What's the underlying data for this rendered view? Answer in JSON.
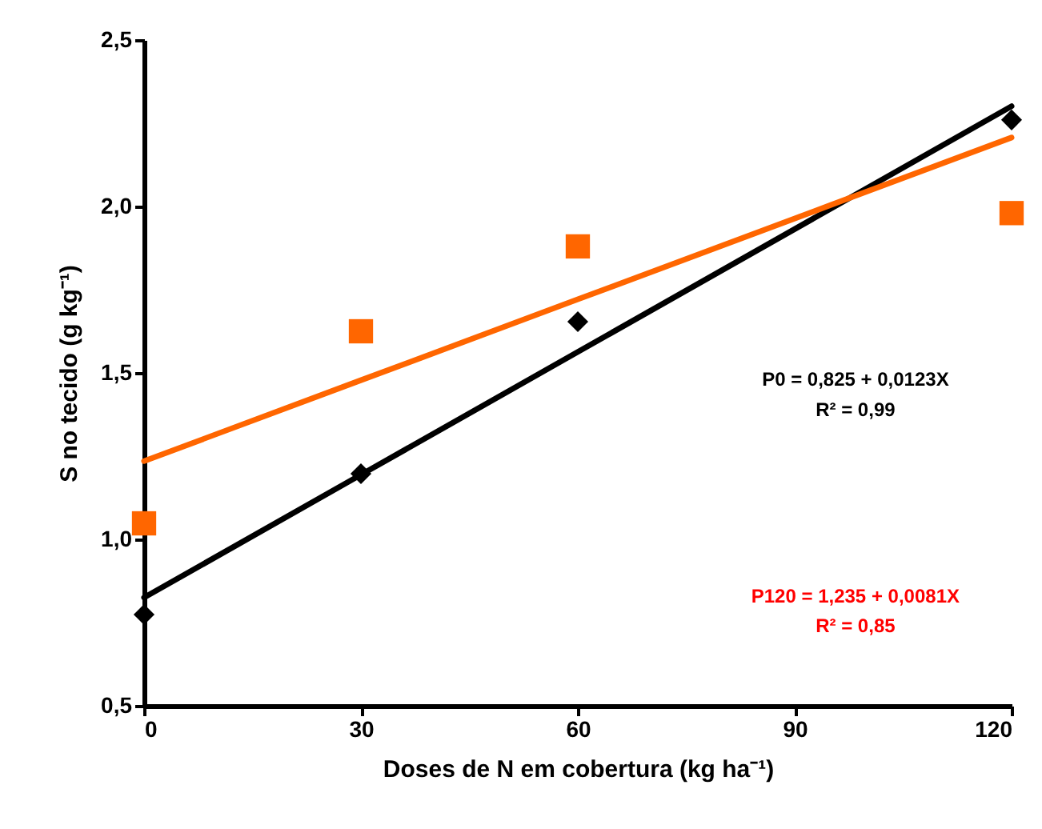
{
  "chart_data": {
    "type": "scatter",
    "xlabel": "Doses de N em cobertura (kg ha⁻¹)",
    "ylabel": "S no tecido (g kg⁻¹)",
    "x": [
      0,
      30,
      60,
      120
    ],
    "series": [
      {
        "color": "#000000",
        "marker": "diamond",
        "values": [
          0.774,
          1.197,
          1.654,
          2.26
        ]
      },
      {
        "color": "#ff6600",
        "marker": "square",
        "values": [
          1.048,
          1.625,
          1.88,
          1.98
        ]
      },
      {
        "type": "line",
        "color": "#000000",
        "values": [
          0.825,
          1.194,
          1.563,
          2.301
        ],
        "marker": "none"
      },
      {
        "type": "line",
        "color": "#ff6600",
        "values": [
          1.235,
          1.478,
          1.721,
          2.207
        ],
        "marker": "none"
      }
    ],
    "annotations": [
      "P0 = 0,825 + 0,0123X",
      "R² = 0,99",
      "P120 = 1,235 + 0,0081X",
      "R² = 0,85"
    ],
    "xlim": [
      0,
      120
    ],
    "xticks": [
      0,
      30,
      60,
      90,
      120
    ],
    "ylim": [
      0.5,
      2.5
    ],
    "yticks": [
      {
        "value": 0.5,
        "label": "0,5"
      },
      {
        "value": 1.0,
        "label": "1,0"
      },
      {
        "value": 1.5,
        "label": "1,5"
      },
      {
        "value": 2.0,
        "label": "2,0"
      },
      {
        "value": 2.5,
        "label": "2,5"
      }
    ],
    "grid": false
  }
}
